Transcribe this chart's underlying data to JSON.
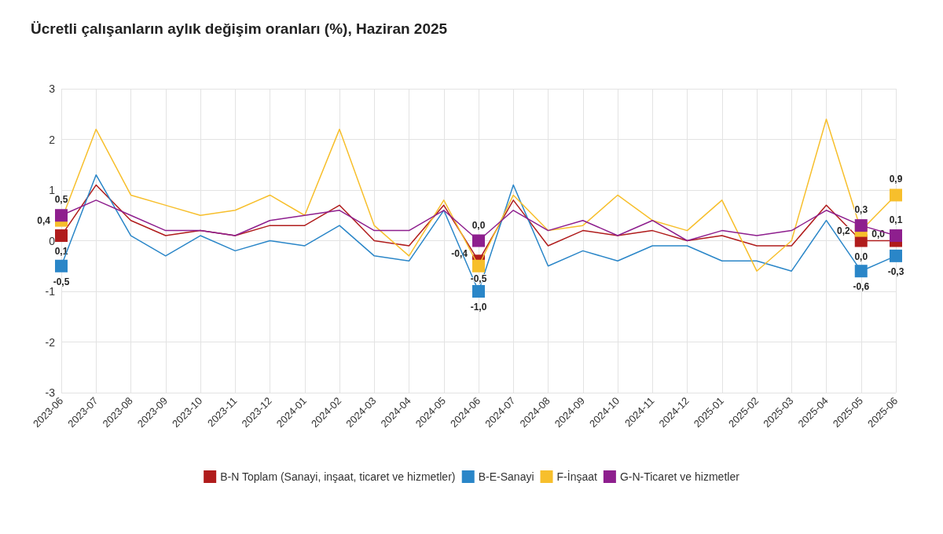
{
  "chart_data": {
    "type": "line",
    "title": "Ücretli çalışanların aylık değişim oranları (%), Haziran 2025",
    "categories": [
      "2023-06",
      "2023-07",
      "2023-08",
      "2023-09",
      "2023-10",
      "2023-11",
      "2023-12",
      "2024-01",
      "2024-02",
      "2024-03",
      "2024-04",
      "2024-05",
      "2024-06",
      "2024-07",
      "2024-08",
      "2024-09",
      "2024-10",
      "2024-11",
      "2024-12",
      "2025-01",
      "2025-02",
      "2025-03",
      "2025-04",
      "2025-05",
      "2025-06"
    ],
    "series": [
      {
        "name": "B-N Toplam (Sanayi, inşaat, ticaret ve hizmetler)",
        "color": "#b01c1c",
        "values": [
          0.1,
          1.1,
          0.4,
          0.1,
          0.2,
          0.1,
          0.3,
          0.3,
          0.7,
          0.0,
          -0.1,
          0.7,
          -0.4,
          0.8,
          -0.1,
          0.2,
          0.1,
          0.2,
          0.0,
          0.1,
          -0.1,
          -0.1,
          0.7,
          0.0,
          0.0
        ],
        "value_labels": [
          "0,1",
          null,
          null,
          null,
          null,
          null,
          null,
          null,
          null,
          null,
          null,
          null,
          "-0,4",
          null,
          null,
          null,
          null,
          null,
          null,
          null,
          null,
          null,
          null,
          "0,0",
          "0,0"
        ]
      },
      {
        "name": "B-E-Sanayi",
        "color": "#2a86c8",
        "values": [
          -0.5,
          1.3,
          0.1,
          -0.3,
          0.1,
          -0.2,
          0.0,
          -0.1,
          0.3,
          -0.3,
          -0.4,
          0.6,
          -1.0,
          1.1,
          -0.5,
          -0.2,
          -0.4,
          -0.1,
          -0.1,
          -0.4,
          -0.4,
          -0.6,
          0.4,
          -0.6,
          -0.3
        ],
        "value_labels": [
          "-0,5",
          null,
          null,
          null,
          null,
          null,
          null,
          null,
          null,
          null,
          null,
          null,
          "-1,0",
          null,
          null,
          null,
          null,
          null,
          null,
          null,
          null,
          null,
          null,
          "-0,6",
          "-0,3"
        ]
      },
      {
        "name": "F-İnşaat",
        "color": "#f7bf2c",
        "values": [
          0.4,
          2.2,
          0.9,
          0.7,
          0.5,
          0.6,
          0.9,
          0.5,
          2.2,
          0.3,
          -0.3,
          0.8,
          -0.5,
          0.9,
          0.2,
          0.3,
          0.9,
          0.4,
          0.2,
          0.8,
          -0.6,
          0.0,
          2.4,
          0.2,
          0.9
        ],
        "value_labels": [
          "0,4",
          null,
          null,
          null,
          null,
          null,
          null,
          null,
          null,
          null,
          null,
          null,
          "-0,5",
          null,
          null,
          null,
          null,
          null,
          null,
          null,
          null,
          null,
          null,
          "0,2",
          "0,9"
        ]
      },
      {
        "name": "G-N-Ticaret ve hizmetler",
        "color": "#8e1f8e",
        "values": [
          0.5,
          0.8,
          0.5,
          0.2,
          0.2,
          0.1,
          0.4,
          0.5,
          0.6,
          0.2,
          0.2,
          0.6,
          0.0,
          0.6,
          0.2,
          0.4,
          0.1,
          0.4,
          0.0,
          0.2,
          0.1,
          0.2,
          0.6,
          0.3,
          0.1
        ],
        "value_labels": [
          "0,5",
          null,
          null,
          null,
          null,
          null,
          null,
          null,
          null,
          null,
          null,
          null,
          "0,0",
          null,
          null,
          null,
          null,
          null,
          null,
          null,
          null,
          null,
          null,
          "0,3",
          "0,1"
        ]
      }
    ],
    "ylim": [
      -3,
      3
    ],
    "yticks": [
      -3,
      -2,
      -1,
      0,
      1,
      2,
      3
    ],
    "grid": true,
    "legend": "bottom",
    "line_style": "solid"
  }
}
